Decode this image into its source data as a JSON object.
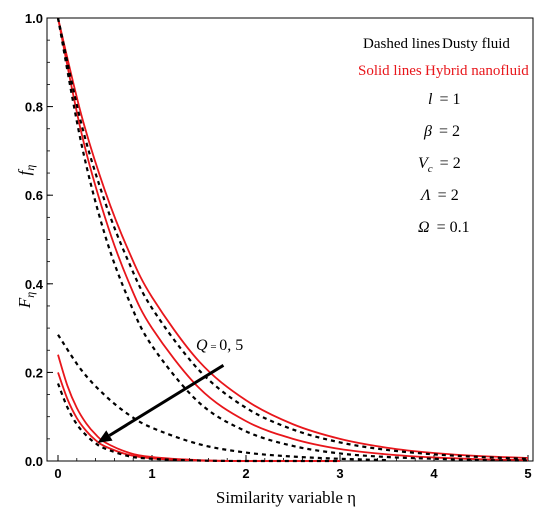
{
  "chart_data": {
    "type": "line",
    "xlabel": "Similarity variable η",
    "ylabel_upper": "f_η",
    "ylabel_lower": "F_η",
    "xlim": [
      0,
      5
    ],
    "ylim": [
      0,
      1.0
    ],
    "x_ticks": [
      "0",
      "1",
      "2",
      "3",
      "4",
      "5"
    ],
    "y_ticks": [
      "0.0",
      "0.2",
      "0.4",
      "0.6",
      "0.8",
      "1.0"
    ],
    "legend": {
      "dashed_label": "Dashed lines",
      "dashed_desc": "Dusty fluid",
      "solid_label": "Solid lines",
      "solid_desc": "Hybrid nanofluid"
    },
    "params": [
      {
        "sym": "l",
        "val": "= 1"
      },
      {
        "sym": "β",
        "val": "= 2"
      },
      {
        "sym": "V",
        "sub": "c",
        "val": "= 2"
      },
      {
        "sym": "Λ",
        "val": "= 2"
      },
      {
        "sym": "Ω",
        "val": "= 0.1"
      }
    ],
    "annotation": {
      "sym": "Q",
      "sep": " = ",
      "values": "0,  5",
      "arrow_from": [
        1.76,
        0.216
      ],
      "arrow_to": [
        0.42,
        0.041
      ]
    },
    "series": [
      {
        "style": "solid",
        "color": "#e8161b",
        "x": [
          0,
          0.25,
          0.5,
          0.75,
          1,
          1.5,
          2,
          2.5,
          3,
          3.5,
          4,
          4.5,
          5
        ],
        "y": [
          1.0,
          0.78,
          0.61,
          0.475,
          0.37,
          0.225,
          0.137,
          0.083,
          0.05,
          0.03,
          0.018,
          0.011,
          0.007
        ]
      },
      {
        "style": "solid",
        "color": "#e8161b",
        "x": [
          0,
          0.25,
          0.5,
          0.75,
          1,
          1.5,
          2,
          2.5,
          3,
          3.5,
          4,
          4.5,
          5
        ],
        "y": [
          1.0,
          0.74,
          0.55,
          0.405,
          0.3,
          0.165,
          0.09,
          0.05,
          0.027,
          0.015,
          0.008,
          0.004,
          0.002
        ]
      },
      {
        "style": "dashed",
        "color": "#000000",
        "x": [
          0,
          0.25,
          0.5,
          0.75,
          1,
          1.5,
          2,
          2.5,
          3,
          3.5,
          4,
          4.5,
          5
        ],
        "y": [
          1.0,
          0.76,
          0.585,
          0.45,
          0.345,
          0.205,
          0.12,
          0.071,
          0.042,
          0.025,
          0.015,
          0.009,
          0.005
        ]
      },
      {
        "style": "dashed",
        "color": "#000000",
        "x": [
          0,
          0.25,
          0.5,
          0.75,
          1,
          1.5,
          2,
          2.5,
          3,
          3.5,
          4,
          4.5,
          5
        ],
        "y": [
          1.0,
          0.715,
          0.51,
          0.365,
          0.26,
          0.132,
          0.067,
          0.034,
          0.017,
          0.009,
          0.005,
          0.002,
          0.001
        ]
      },
      {
        "style": "solid",
        "color": "#e8161b",
        "x": [
          0,
          0.1,
          0.2,
          0.3,
          0.4,
          0.5,
          0.75,
          1,
          1.5,
          2,
          2.5,
          3
        ],
        "y": [
          0.2,
          0.14,
          0.097,
          0.068,
          0.047,
          0.033,
          0.014,
          0.006,
          0.001,
          0.0,
          0.0,
          0.0
        ]
      },
      {
        "style": "solid",
        "color": "#e8161b",
        "x": [
          0,
          0.1,
          0.2,
          0.3,
          0.4,
          0.5,
          0.75,
          1,
          1.5,
          2,
          2.5,
          3
        ],
        "y": [
          0.24,
          0.17,
          0.12,
          0.085,
          0.06,
          0.042,
          0.019,
          0.009,
          0.002,
          0.0,
          0.0,
          0.0
        ]
      },
      {
        "style": "dashed",
        "color": "#000000",
        "x": [
          0,
          0.25,
          0.5,
          0.75,
          1,
          1.5,
          2,
          2.5,
          3,
          3.5
        ],
        "y": [
          0.285,
          0.205,
          0.148,
          0.105,
          0.075,
          0.038,
          0.019,
          0.01,
          0.005,
          0.002
        ]
      },
      {
        "style": "dashed",
        "color": "#000000",
        "x": [
          0,
          0.1,
          0.2,
          0.3,
          0.4,
          0.5,
          0.75,
          1,
          1.5,
          2,
          2.5,
          3
        ],
        "y": [
          0.175,
          0.121,
          0.083,
          0.058,
          0.04,
          0.028,
          0.011,
          0.005,
          0.001,
          0.0,
          0.0,
          0.0
        ]
      }
    ]
  }
}
